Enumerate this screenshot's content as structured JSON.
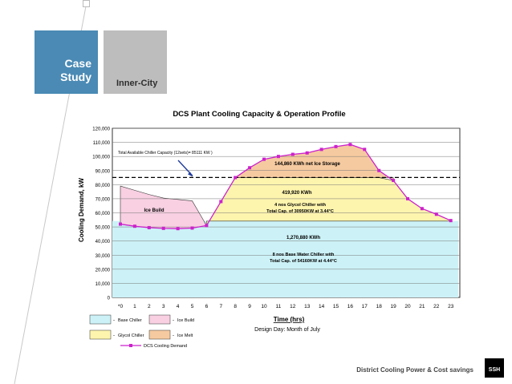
{
  "slide": {
    "case_label_1": "Case",
    "case_label_2": "Study",
    "inner_label": "Inner-City",
    "footer": "District Cooling Power & Cost savings",
    "logo": "SSH"
  },
  "colors": {
    "case_blue": "#4a8ab5",
    "inner_grey": "#bdbdbd",
    "base_chiller": "#ccf2f7",
    "ice_build": "#f8d0e2",
    "glycol_chiller": "#fdf4ae",
    "ice_melt": "#f6caa0",
    "demand_line": "#cc22cc"
  },
  "chart_data": {
    "type": "area",
    "title": "DCS Plant Cooling Capacity & Operation Profile",
    "xlabel": "Time (hrs)",
    "xlabel_sub": "Design Day: Month of July",
    "ylabel": "Cooling Demand, kW",
    "ylim": [
      0,
      120000
    ],
    "yticks": [
      "0",
      "10,000",
      "20,000",
      "30,000",
      "40,000",
      "50,000",
      "60,000",
      "70,000",
      "80,000",
      "90,000",
      "100,000",
      "110,000",
      "120,000"
    ],
    "x_tick_labels": [
      "*0",
      "1",
      "2",
      "3",
      "4",
      "5",
      "6",
      "7",
      "8",
      "9",
      "10",
      "11",
      "12",
      "13",
      "14",
      "15",
      "16",
      "17",
      "18",
      "19",
      "20",
      "21",
      "22",
      "23"
    ],
    "grid": true,
    "total_capacity_kw": 85111,
    "base_chiller_kw": 54160,
    "glycol_top_kw": 85000,
    "series": [
      {
        "name": "DCS Cooling Demand",
        "x": [
          0,
          1,
          2,
          3,
          4,
          5,
          6,
          7,
          8,
          9,
          10,
          11,
          12,
          13,
          14,
          15,
          16,
          17,
          18,
          19,
          20,
          21,
          22,
          23
        ],
        "values": [
          52000,
          50500,
          49500,
          49000,
          48800,
          49200,
          51000,
          68000,
          85000,
          92000,
          98000,
          100000,
          101500,
          102500,
          105000,
          107000,
          108500,
          105000,
          90000,
          83000,
          70000,
          63000,
          59000,
          54500
        ]
      },
      {
        "name": "Ice Build top",
        "x": [
          0,
          1,
          2,
          3,
          4,
          5,
          6
        ],
        "values": [
          79000,
          76000,
          73000,
          70500,
          69500,
          68500,
          51000
        ]
      }
    ],
    "legend": [
      {
        "key": "base",
        "label": "Base Chiller"
      },
      {
        "key": "build",
        "label": "Ice Build"
      },
      {
        "key": "glycol",
        "label": "Glycol Chiller"
      },
      {
        "key": "melt",
        "label": "Ice Melt"
      },
      {
        "key": "demand",
        "label": "DCS Cooling Demand"
      }
    ],
    "annotations": {
      "total_capacity": "Total Available Chiller Capacity (12sets)= 85111 KW )",
      "ice_storage": "144,860 KWh  net  Ice Storage",
      "glycol_kwh": "419,920 KWh",
      "glycol_desc_1": "4 nos Glycol Chiller with",
      "glycol_desc_2": "Total Cap. of 30950KW at 3.44°C",
      "ice_build": "Ice Build",
      "base_kwh": "1,270,880 KWh",
      "base_desc_1": "8 nos Base Water Chiller with",
      "base_desc_2": "Total Cap. of 54160KW at 4.44°C"
    }
  }
}
